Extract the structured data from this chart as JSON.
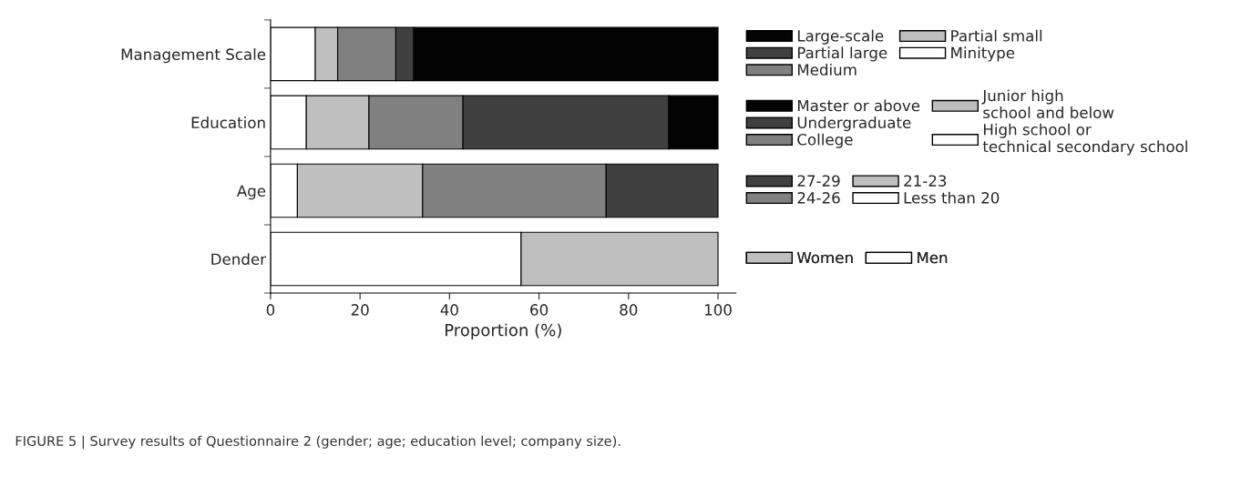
{
  "chart_data": {
    "type": "bar",
    "orientation": "horizontal",
    "stacked": true,
    "categories": [
      "Management Scale",
      "Education",
      "Age",
      "Dender"
    ],
    "xlabel": "Proportion (%)",
    "xlim": [
      0,
      104
    ],
    "xticks": [
      0,
      20,
      40,
      60,
      80,
      100
    ],
    "legend": "right",
    "grid": false,
    "annotations": [
      "FIGURE 5 | Survey results of Questionnaire 2 (gender; age; education level; company size)."
    ],
    "series": [
      {
        "name": "Minitype",
        "color": "#ffffff",
        "values": [
          10,
          null,
          null,
          null
        ]
      },
      {
        "name": "Partial small",
        "color": "#bfbfbf",
        "values": [
          5,
          null,
          null,
          null
        ]
      },
      {
        "name": "Medium",
        "color": "#808080",
        "values": [
          13,
          null,
          null,
          null
        ]
      },
      {
        "name": "Partial large",
        "color": "#404040",
        "values": [
          4,
          null,
          null,
          null
        ]
      },
      {
        "name": "Large-scale",
        "color": "#030303",
        "values": [
          68,
          null,
          null,
          null
        ]
      },
      {
        "name": "High school or\ntechnical secondary school",
        "color": "#ffffff",
        "values": [
          null,
          8,
          null,
          null
        ]
      },
      {
        "name": "Junior high\nschool and below",
        "color": "#bfbfbf",
        "values": [
          null,
          14,
          null,
          null
        ]
      },
      {
        "name": "College",
        "color": "#808080",
        "values": [
          null,
          21,
          null,
          null
        ]
      },
      {
        "name": "Undergraduate",
        "color": "#404040",
        "values": [
          null,
          46,
          null,
          null
        ]
      },
      {
        "name": "Master or above",
        "color": "#030303",
        "values": [
          null,
          11,
          null,
          null
        ]
      },
      {
        "name": "Less than 20",
        "color": "#ffffff",
        "values": [
          null,
          null,
          6,
          null
        ]
      },
      {
        "name": "21-23",
        "color": "#bfbfbf",
        "values": [
          null,
          null,
          28,
          null
        ]
      },
      {
        "name": "24-26",
        "color": "#808080",
        "values": [
          null,
          null,
          41,
          null
        ]
      },
      {
        "name": "27-29",
        "color": "#404040",
        "values": [
          null,
          null,
          25,
          null
        ]
      },
      {
        "name": "Men",
        "color": "#ffffff",
        "values": [
          null,
          null,
          null,
          56
        ]
      },
      {
        "name": "Women",
        "color": "#bfbfbf",
        "values": [
          null,
          null,
          null,
          44
        ]
      }
    ]
  }
}
